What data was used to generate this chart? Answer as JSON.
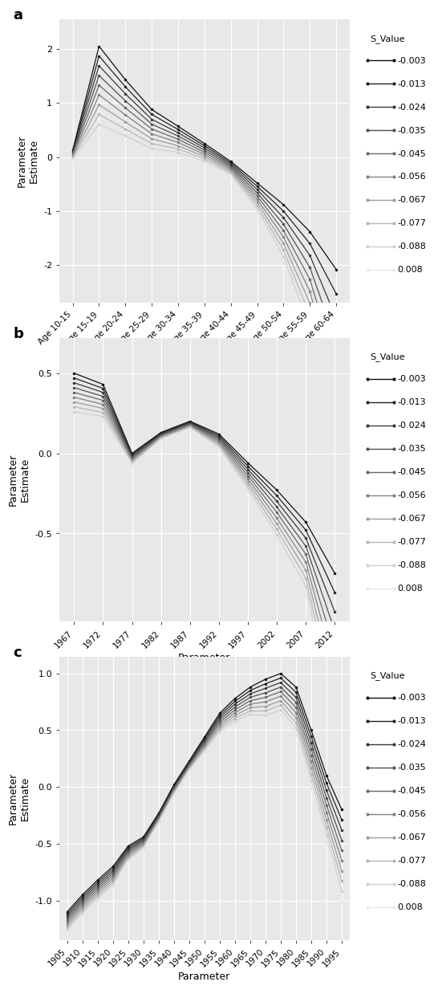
{
  "s_labels": [
    "-0.003",
    "-0.013",
    "-0.024",
    "-0.035",
    "-0.045",
    "-0.056",
    "-0.067",
    "-0.077",
    "-0.088",
    "0.008"
  ],
  "gray_colors": [
    "#111111",
    "#222222",
    "#383838",
    "#505050",
    "#686868",
    "#828282",
    "#9c9c9c",
    "#b6b6b6",
    "#d0d0d0",
    "#e8e8e8"
  ],
  "panel_a": {
    "label": "a",
    "categories": [
      "Age 10-15",
      "Age 15-19",
      "Age 20-24",
      "Age 25-29",
      "Age 30-34",
      "Age 35-39",
      "Age 40-44",
      "Age 45-49",
      "Age 50-54",
      "Age 55-59",
      "Age 60-64"
    ],
    "base_values": [
      0.13,
      2.05,
      1.43,
      0.88,
      0.57,
      0.25,
      -0.08,
      -0.48,
      -0.88,
      -1.38,
      -2.08
    ],
    "spread_per_step": [
      0.02,
      0.18,
      0.13,
      0.09,
      0.06,
      0.04,
      0.03,
      0.06,
      0.12,
      0.22,
      0.45
    ],
    "yticks": [
      -2,
      -1,
      0,
      1,
      2
    ],
    "ylim": [
      -2.7,
      2.55
    ]
  },
  "panel_b": {
    "label": "b",
    "categories": [
      "1967",
      "1972",
      "1977",
      "1982",
      "1987",
      "1992",
      "1997",
      "2002",
      "2007",
      "2012"
    ],
    "base_values": [
      0.5,
      0.43,
      0.0,
      0.13,
      0.2,
      0.12,
      -0.06,
      -0.23,
      -0.43,
      -0.75
    ],
    "spread_per_step": [
      0.03,
      0.025,
      0.008,
      0.005,
      0.005,
      0.01,
      0.02,
      0.035,
      0.05,
      0.12
    ],
    "yticks": [
      -0.5,
      0.0,
      0.5
    ],
    "ylim": [
      -1.05,
      0.72
    ]
  },
  "panel_c": {
    "label": "c",
    "categories": [
      "1905",
      "1910",
      "1915",
      "1920",
      "1925",
      "1930",
      "1935",
      "1940",
      "1945",
      "1950",
      "1955",
      "1960",
      "1965",
      "1970",
      "1975",
      "1980",
      "1985",
      "1990",
      "1995"
    ],
    "base_values": [
      -1.1,
      -0.95,
      -0.82,
      -0.7,
      -0.52,
      -0.44,
      -0.23,
      0.02,
      0.23,
      0.44,
      0.65,
      0.78,
      0.88,
      0.95,
      1.0,
      0.88,
      0.5,
      0.1,
      -0.2
    ],
    "spread_per_step": [
      0.02,
      0.02,
      0.02,
      0.02,
      0.015,
      0.012,
      0.01,
      0.01,
      0.01,
      0.015,
      0.02,
      0.025,
      0.03,
      0.04,
      0.04,
      0.045,
      0.055,
      0.065,
      0.09
    ],
    "yticks": [
      -1.0,
      -0.5,
      0.0,
      0.5,
      1.0
    ],
    "ylim": [
      -1.35,
      1.15
    ]
  },
  "background_color": "#e8e8e8",
  "grid_color": "white",
  "xlabel": "Parameter",
  "ylabel": "Parameter\nEstimate"
}
